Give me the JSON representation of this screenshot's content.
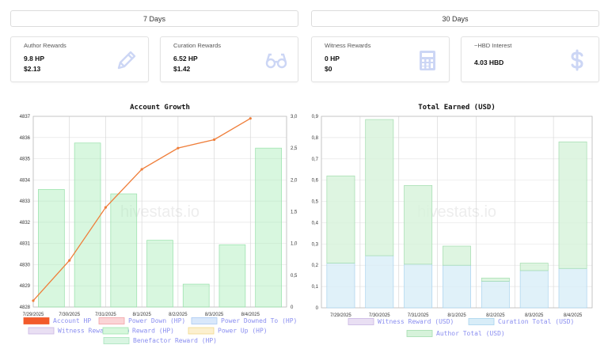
{
  "tabs": {
    "seven_days": "7 Days",
    "thirty_days": "30 Days"
  },
  "cards": [
    {
      "title": "Author Rewards",
      "line1": "9.8 HP",
      "line2": "$2.13",
      "icon": "pencil-icon"
    },
    {
      "title": "Curation Rewards",
      "line1": "6.52 HP",
      "line2": "$1.42",
      "icon": "glasses-icon"
    },
    {
      "title": "Witness Rewards",
      "line1": "0 HP",
      "line2": "$0",
      "icon": "calculator-icon"
    },
    {
      "title": "~HBD Interest",
      "line1": "4.03 HBD",
      "line2": "",
      "icon": "dollar-icon"
    }
  ],
  "icon_color": "#ccd6f5",
  "chart_data": [
    {
      "type": "bar",
      "title": "Account Growth",
      "watermark": "hivestats.io",
      "categories": [
        "7/29/2025",
        "7/30/2025",
        "7/31/2025",
        "8/1/2025",
        "8/2/2025",
        "8/3/2025",
        "8/4/2025"
      ],
      "ylim_left": [
        4828,
        4837
      ],
      "yticks_left": [
        4828,
        4829,
        4830,
        4831,
        4832,
        4833,
        4834,
        4835,
        4836,
        4837
      ],
      "ylim_right": [
        0,
        3
      ],
      "yticks_right": [
        "0",
        "0,5",
        "1,0",
        "1,5",
        "2,0",
        "2,5",
        "3,0"
      ],
      "series": [
        {
          "name": "Account HP",
          "type": "line",
          "axis": "left",
          "color": "#ef7e3a",
          "values": [
            4828.3,
            4830.2,
            4832.7,
            4834.5,
            4835.5,
            4835.9,
            4836.9
          ]
        },
        {
          "name": "Reward (HP)",
          "type": "bar",
          "axis": "right",
          "color": "#a8edb8",
          "values": [
            1.85,
            2.58,
            1.78,
            1.05,
            0.36,
            0.98,
            2.5
          ]
        }
      ],
      "legend": [
        {
          "name": "Account HP",
          "fill": "#f25a2b",
          "stroke": "#f25a2b"
        },
        {
          "name": "Power Down (HP)",
          "fill": "#fbd4d6",
          "stroke": "#f3a1a6"
        },
        {
          "name": "Power Downed To (HP)",
          "fill": "#d9e8fb",
          "stroke": "#a9c9f3"
        },
        {
          "name": "Witness Reward (HP)",
          "fill": "#e9dff3",
          "stroke": "#c9b4e3"
        },
        {
          "name": "Reward (HP)",
          "fill": "#d6f7dc",
          "stroke": "#9fe3ad"
        },
        {
          "name": "Power Up (HP)",
          "fill": "#fcf0cf",
          "stroke": "#f0d98a"
        },
        {
          "name": "Benefactor Reward (HP)",
          "fill": "#d9f5e2",
          "stroke": "#a6e3bb"
        }
      ]
    },
    {
      "type": "bar",
      "title": "Total Earned (USD)",
      "watermark": "hivestats.io",
      "categories": [
        "7/29/2025",
        "7/30/2025",
        "7/31/2025",
        "8/1/2025",
        "8/2/2025",
        "8/3/2025",
        "8/4/2025"
      ],
      "ylim": [
        0,
        0.9
      ],
      "yticks": [
        "0",
        "0,1",
        "0,2",
        "0,3",
        "0,4",
        "0,5",
        "0,6",
        "0,7",
        "0,8",
        "0,9"
      ],
      "stacked": true,
      "series": [
        {
          "name": "Curation Total (USD)",
          "color": "#d8edf8",
          "stroke": "#a8d3ee",
          "values": [
            0.21,
            0.245,
            0.205,
            0.2,
            0.125,
            0.175,
            0.185
          ]
        },
        {
          "name": "Author Total (USD)",
          "color": "#d6f2da",
          "stroke": "#a2dcae",
          "values": [
            0.41,
            0.64,
            0.37,
            0.09,
            0.015,
            0.035,
            0.595
          ]
        }
      ],
      "legend": [
        {
          "name": "Witness Reward (USD)",
          "fill": "#e9dff3",
          "stroke": "#c9b4e3"
        },
        {
          "name": "Curation Total (USD)",
          "fill": "#d8edf8",
          "stroke": "#a8d3ee"
        },
        {
          "name": "Author Total (USD)",
          "fill": "#d6f2da",
          "stroke": "#a2dcae"
        }
      ]
    }
  ]
}
